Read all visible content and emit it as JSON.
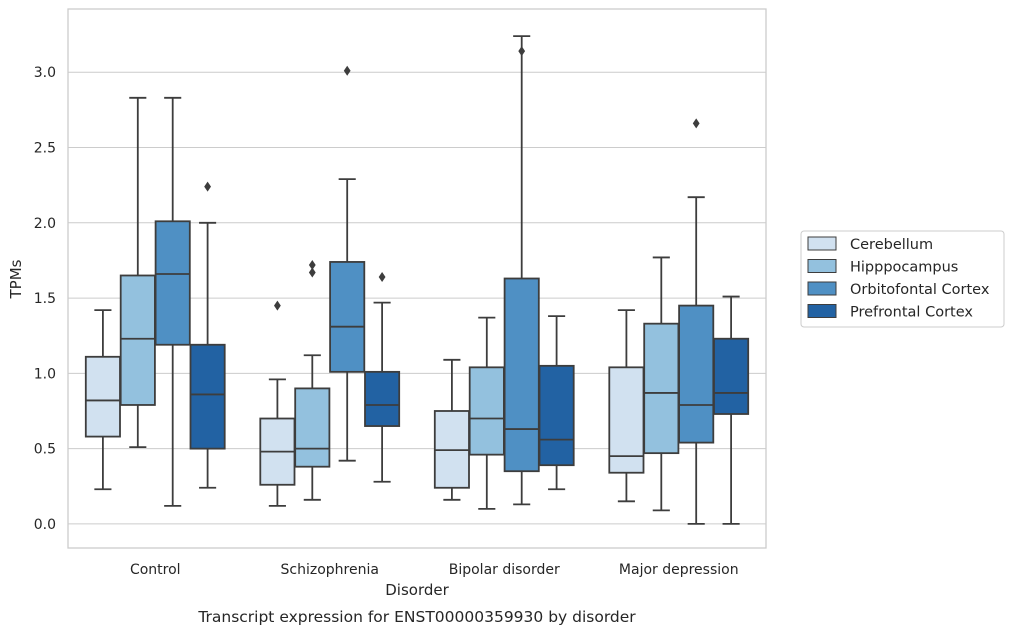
{
  "caption": "Transcript expression for ENST00000359930 by disorder",
  "chart_data": {
    "type": "box",
    "title": "",
    "xlabel": "Disorder",
    "ylabel": "TPMs",
    "ylim": [
      -0.16,
      3.42
    ],
    "yticks": [
      "0.0",
      "0.5",
      "1.0",
      "1.5",
      "2.0",
      "2.5",
      "3.0"
    ],
    "grid": "horizontal",
    "legend_position": "right",
    "categories": [
      "Control",
      "Schizophrenia",
      "Bipolar disorder",
      "Major depression"
    ],
    "series": [
      {
        "name": "Cerebellum",
        "color": "#d1e1f0",
        "boxes": [
          {
            "whislo": 0.23,
            "q1": 0.58,
            "med": 0.82,
            "q3": 1.11,
            "whishi": 1.42,
            "fliers": []
          },
          {
            "whislo": 0.12,
            "q1": 0.26,
            "med": 0.48,
            "q3": 0.7,
            "whishi": 0.96,
            "fliers": [
              1.45
            ]
          },
          {
            "whislo": 0.16,
            "q1": 0.24,
            "med": 0.49,
            "q3": 0.75,
            "whishi": 1.09,
            "fliers": []
          },
          {
            "whislo": 0.15,
            "q1": 0.34,
            "med": 0.45,
            "q3": 1.04,
            "whishi": 1.42,
            "fliers": []
          }
        ]
      },
      {
        "name": "Hipppocampus",
        "color": "#93c1de",
        "boxes": [
          {
            "whislo": 0.51,
            "q1": 0.79,
            "med": 1.23,
            "q3": 1.65,
            "whishi": 2.83,
            "fliers": []
          },
          {
            "whislo": 0.16,
            "q1": 0.38,
            "med": 0.5,
            "q3": 0.9,
            "whishi": 1.12,
            "fliers": [
              1.67,
              1.72
            ]
          },
          {
            "whislo": 0.1,
            "q1": 0.46,
            "med": 0.7,
            "q3": 1.04,
            "whishi": 1.37,
            "fliers": []
          },
          {
            "whislo": 0.09,
            "q1": 0.47,
            "med": 0.87,
            "q3": 1.33,
            "whishi": 1.77,
            "fliers": []
          }
        ]
      },
      {
        "name": "Orbitofontal Cortex",
        "color": "#4f90c4",
        "boxes": [
          {
            "whislo": 0.12,
            "q1": 1.19,
            "med": 1.66,
            "q3": 2.01,
            "whishi": 2.83,
            "fliers": []
          },
          {
            "whislo": 0.42,
            "q1": 1.01,
            "med": 1.31,
            "q3": 1.74,
            "whishi": 2.29,
            "fliers": [
              3.01
            ]
          },
          {
            "whislo": 0.13,
            "q1": 0.35,
            "med": 0.63,
            "q3": 1.63,
            "whishi": 3.24,
            "fliers": [
              3.14
            ]
          },
          {
            "whislo": 0.0,
            "q1": 0.54,
            "med": 0.79,
            "q3": 1.45,
            "whishi": 2.17,
            "fliers": [
              2.66
            ]
          }
        ]
      },
      {
        "name": "Prefrontal Cortex",
        "color": "#2262a3",
        "boxes": [
          {
            "whislo": 0.24,
            "q1": 0.5,
            "med": 0.86,
            "q3": 1.19,
            "whishi": 2.0,
            "fliers": [
              2.24
            ]
          },
          {
            "whislo": 0.28,
            "q1": 0.65,
            "med": 0.79,
            "q3": 1.01,
            "whishi": 1.47,
            "fliers": [
              1.64
            ]
          },
          {
            "whislo": 0.23,
            "q1": 0.39,
            "med": 0.56,
            "q3": 1.05,
            "whishi": 1.38,
            "fliers": []
          },
          {
            "whislo": 0.0,
            "q1": 0.73,
            "med": 0.87,
            "q3": 1.23,
            "whishi": 1.51,
            "fliers": []
          }
        ]
      }
    ]
  }
}
